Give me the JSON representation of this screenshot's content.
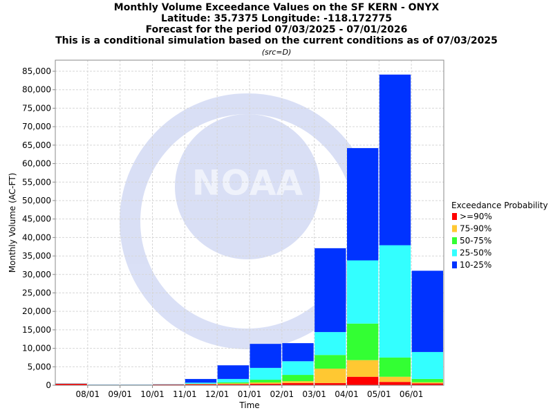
{
  "chart_data": {
    "type": "stacked_bar",
    "title": "Monthly Volume Exceedance Values on the SF KERN - ONYX",
    "subtitles": [
      "Latitude: 35.7375 Longitude: -118.172775",
      "Forecast for the period 07/03/2025 - 07/01/2026",
      "This is a conditional simulation based on the current conditions as of 07/03/2025"
    ],
    "note": "(src=D)",
    "watermark": "NOAA",
    "x_label": "Time",
    "y_label": "Monthly Volume (AC-FT)",
    "legend_title": "Exceedance Probability",
    "legend_position": "right",
    "grid": true,
    "categories": [
      null,
      "08/01",
      "09/01",
      "10/01",
      "11/01",
      "12/01",
      "01/01",
      "02/01",
      "03/01",
      "04/01",
      "05/01",
      "06/01"
    ],
    "series": [
      {
        "name": ">=90%",
        "color": "#ff0000",
        "values": [
          400,
          100,
          100,
          200,
          300,
          300,
          400,
          600,
          600,
          2300,
          900,
          500
        ]
      },
      {
        "name": "75-90%",
        "color": "#ffc832",
        "values": [
          20,
          20,
          20,
          20,
          50,
          200,
          350,
          500,
          3900,
          4500,
          1400,
          300
        ]
      },
      {
        "name": "50-75%",
        "color": "#33ff33",
        "values": [
          20,
          20,
          20,
          20,
          50,
          300,
          750,
          1700,
          3700,
          9900,
          5200,
          900
        ]
      },
      {
        "name": "25-50%",
        "color": "#33ffff",
        "values": [
          20,
          20,
          20,
          20,
          300,
          900,
          3200,
          3700,
          6200,
          17100,
          30400,
          7300
        ]
      },
      {
        "name": "10-25%",
        "color": "#0033ff",
        "values": [
          40,
          40,
          40,
          40,
          1000,
          3700,
          6500,
          4900,
          22700,
          30400,
          46200,
          22000
        ]
      }
    ],
    "ylim": [
      0,
      88000
    ],
    "yticks": [
      0,
      {
        "value": 5000,
        "label": "5,000"
      },
      {
        "value": 10000,
        "label": "10,000"
      },
      {
        "value": 15000,
        "label": "15,000"
      },
      {
        "value": 20000,
        "label": "20,000"
      },
      {
        "value": 25000,
        "label": "25,000"
      },
      {
        "value": 30000,
        "label": "30,000"
      },
      {
        "value": 35000,
        "label": "35,000"
      },
      {
        "value": 40000,
        "label": "40,000"
      },
      {
        "value": 45000,
        "label": "45,000"
      },
      {
        "value": 50000,
        "label": "50,000"
      },
      {
        "value": 55000,
        "label": "55,000"
      },
      {
        "value": 60000,
        "label": "60,000"
      },
      {
        "value": 65000,
        "label": "65,000"
      },
      {
        "value": 70000,
        "label": "70,000"
      },
      {
        "value": 75000,
        "label": "75,000"
      },
      {
        "value": 80000,
        "label": "80,000"
      },
      {
        "value": 85000,
        "label": "85,000"
      }
    ]
  }
}
